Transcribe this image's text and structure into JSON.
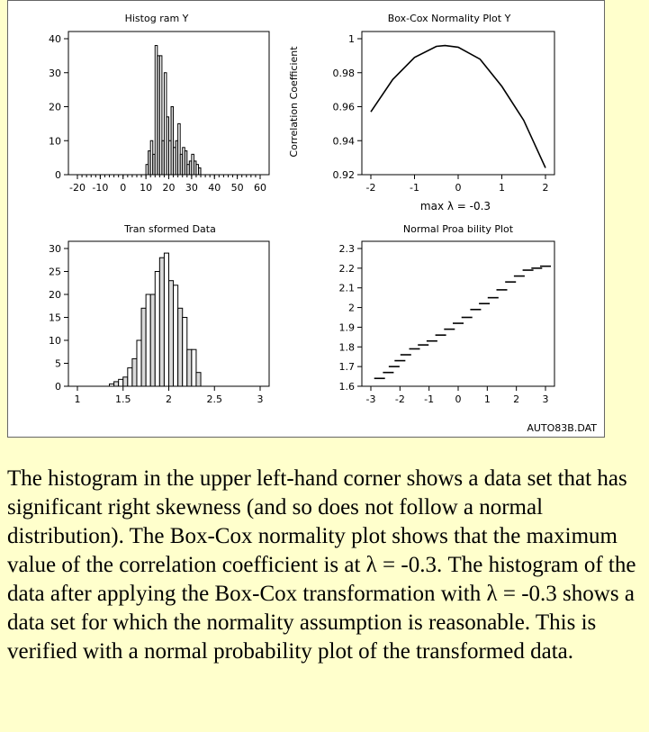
{
  "figure": {
    "footer": "AUTO83B.DAT",
    "charts": [
      {
        "title": "Histog ram Y",
        "xticks": [
          "-20",
          "-10",
          "0",
          "10",
          "20",
          "30",
          "40",
          "50",
          "60"
        ],
        "yticks": [
          "0",
          "10",
          "20",
          "30",
          "40"
        ]
      },
      {
        "title": "Box-Cox Normality Plot Y",
        "ylabel": "Correlation Coefficient",
        "xlabel": "max λ = -0.3",
        "xticks": [
          "-2",
          "-1",
          "0",
          "1",
          "2"
        ],
        "yticks": [
          "0.92",
          "0.94",
          "0.96",
          "0.98",
          "1"
        ]
      },
      {
        "title": "Tran sformed Data",
        "xticks": [
          "1",
          "1.5",
          "2",
          "2.5",
          "3"
        ],
        "yticks": [
          "0",
          "5",
          "10",
          "15",
          "20",
          "25",
          "30"
        ]
      },
      {
        "title": "Normal Proa bility Plot",
        "xticks": [
          "-3",
          "-2",
          "-1",
          "0",
          "1",
          "2",
          "3"
        ],
        "yticks": [
          "1.6",
          "1.7",
          "1.8",
          "1.9",
          "2",
          "2.1",
          "2.2",
          "2.3"
        ]
      }
    ]
  },
  "chart_data": [
    {
      "type": "bar",
      "title": "Histog ram Y",
      "xlim": [
        -20,
        60
      ],
      "ylim": [
        0,
        40
      ],
      "bin_width": 1,
      "bins": [
        {
          "x0": 10,
          "y": 3
        },
        {
          "x0": 11,
          "y": 7
        },
        {
          "x0": 12,
          "y": 10
        },
        {
          "x0": 13,
          "y": 6
        },
        {
          "x0": 14,
          "y": 38
        },
        {
          "x0": 15,
          "y": 35
        },
        {
          "x0": 16,
          "y": 35
        },
        {
          "x0": 17,
          "y": 10
        },
        {
          "x0": 18,
          "y": 30
        },
        {
          "x0": 19,
          "y": 17
        },
        {
          "x0": 20,
          "y": 10
        },
        {
          "x0": 21,
          "y": 20
        },
        {
          "x0": 22,
          "y": 8
        },
        {
          "x0": 23,
          "y": 10
        },
        {
          "x0": 24,
          "y": 15
        },
        {
          "x0": 25,
          "y": 6
        },
        {
          "x0": 26,
          "y": 8
        },
        {
          "x0": 27,
          "y": 7
        },
        {
          "x0": 28,
          "y": 3
        },
        {
          "x0": 29,
          "y": 4
        },
        {
          "x0": 30,
          "y": 6
        },
        {
          "x0": 31,
          "y": 4
        },
        {
          "x0": 32,
          "y": 3
        },
        {
          "x0": 33,
          "y": 2
        }
      ]
    },
    {
      "type": "line",
      "title": "Box-Cox Normality Plot Y",
      "xlabel": "max λ = -0.3",
      "ylabel": "Correlation Coefficient",
      "xlim": [
        -2,
        2
      ],
      "ylim": [
        0.92,
        1
      ],
      "max_lambda": -0.3,
      "points": [
        [
          -2,
          0.957
        ],
        [
          -1.5,
          0.976
        ],
        [
          -1,
          0.989
        ],
        [
          -0.5,
          0.9955
        ],
        [
          -0.3,
          0.996
        ],
        [
          0,
          0.995
        ],
        [
          0.5,
          0.988
        ],
        [
          1,
          0.972
        ],
        [
          1.5,
          0.952
        ],
        [
          2,
          0.924
        ]
      ]
    },
    {
      "type": "bar",
      "title": "Tran sformed Data",
      "xlim": [
        1,
        3
      ],
      "ylim": [
        0,
        30
      ],
      "bin_width": 0.05,
      "bins": [
        {
          "x0": 1.35,
          "y": 0.5
        },
        {
          "x0": 1.4,
          "y": 1
        },
        {
          "x0": 1.45,
          "y": 1.5
        },
        {
          "x0": 1.5,
          "y": 2
        },
        {
          "x0": 1.55,
          "y": 4
        },
        {
          "x0": 1.6,
          "y": 6
        },
        {
          "x0": 1.65,
          "y": 10
        },
        {
          "x0": 1.7,
          "y": 17
        },
        {
          "x0": 1.75,
          "y": 20
        },
        {
          "x0": 1.8,
          "y": 20
        },
        {
          "x0": 1.85,
          "y": 25
        },
        {
          "x0": 1.9,
          "y": 28
        },
        {
          "x0": 1.95,
          "y": 29
        },
        {
          "x0": 2.0,
          "y": 23
        },
        {
          "x0": 2.05,
          "y": 22
        },
        {
          "x0": 2.1,
          "y": 17
        },
        {
          "x0": 2.15,
          "y": 15
        },
        {
          "x0": 2.2,
          "y": 8
        },
        {
          "x0": 2.25,
          "y": 8
        },
        {
          "x0": 2.3,
          "y": 3
        }
      ]
    },
    {
      "type": "scatter",
      "title": "Normal Proa bility Plot",
      "xlim": [
        -3,
        3
      ],
      "ylim": [
        1.6,
        2.3
      ],
      "steps": [
        [
          -2.7,
          1.64
        ],
        [
          -2.4,
          1.67
        ],
        [
          -2.2,
          1.7
        ],
        [
          -2.0,
          1.73
        ],
        [
          -1.8,
          1.76
        ],
        [
          -1.5,
          1.79
        ],
        [
          -1.2,
          1.81
        ],
        [
          -0.9,
          1.83
        ],
        [
          -0.6,
          1.86
        ],
        [
          -0.3,
          1.89
        ],
        [
          0.0,
          1.92
        ],
        [
          0.3,
          1.95
        ],
        [
          0.6,
          1.99
        ],
        [
          0.9,
          2.02
        ],
        [
          1.2,
          2.05
        ],
        [
          1.5,
          2.09
        ],
        [
          1.8,
          2.13
        ],
        [
          2.1,
          2.16
        ],
        [
          2.4,
          2.19
        ],
        [
          2.7,
          2.2
        ],
        [
          3.0,
          2.21
        ]
      ]
    }
  ],
  "caption": "The histogram in the upper left-hand corner shows a data set that has significant right skewness (and so does not follow a normal distribution). The Box-Cox normality plot shows that the maximum value of the correlation coefficient is at λ = -0.3. The histogram of the data after applying the Box-Cox transformation with λ = -0.3 shows a data set for which the normality assumption is reasonable. This is verified with a normal probability plot of the transformed data."
}
